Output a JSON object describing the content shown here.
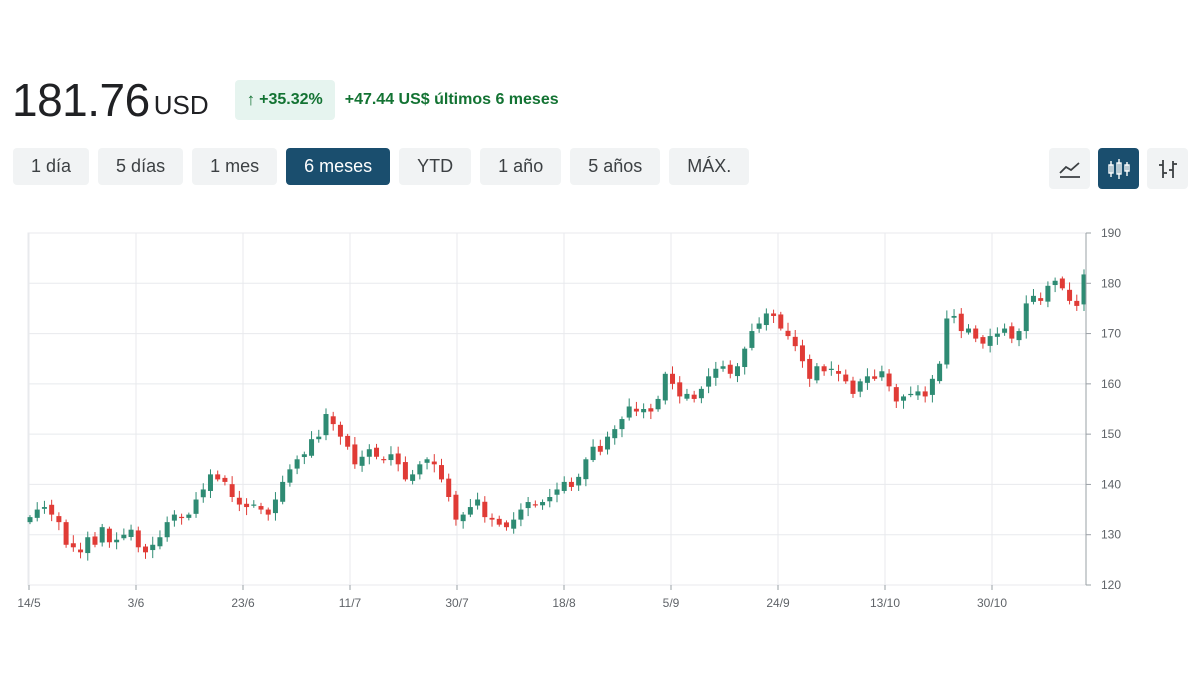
{
  "header": {
    "price": "181.76",
    "currency": "USD",
    "percent_change": "+35.32%",
    "change_text": "+47.44 US$ últimos 6 meses"
  },
  "ranges": [
    {
      "label": "1 día"
    },
    {
      "label": "5 días"
    },
    {
      "label": "1 mes"
    },
    {
      "label": "6 meses",
      "active": true
    },
    {
      "label": "YTD"
    },
    {
      "label": "1 año"
    },
    {
      "label": "5 años"
    },
    {
      "label": "MÁX."
    }
  ],
  "chart_types": [
    {
      "icon": "line-chart-icon"
    },
    {
      "icon": "candlestick-chart-icon",
      "active": true
    },
    {
      "icon": "ohlc-chart-icon"
    }
  ],
  "colors": {
    "up": "#2e8b73",
    "down": "#e03b36",
    "accent": "#1a4e6e",
    "positive_text": "#137333",
    "positive_bg": "#e6f4ef"
  },
  "chart_data": {
    "type": "candlestick",
    "ylim": [
      120,
      190
    ],
    "y_ticks": [
      190,
      180,
      170,
      160,
      150,
      140,
      130,
      120
    ],
    "x_tick_labels": [
      "14/5",
      "3/6",
      "23/6",
      "11/7",
      "30/7",
      "18/8",
      "5/9",
      "24/9",
      "13/10",
      "30/10"
    ],
    "grid": true,
    "y_axis_position": "right",
    "closes": [
      133.5,
      135.0,
      135.5,
      134.0,
      132.5,
      128.0,
      127.5,
      126.5,
      129.5,
      128.0,
      131.5,
      128.5,
      129.0,
      130.0,
      131.0,
      127.5,
      126.5,
      128.0,
      129.5,
      132.5,
      134.0,
      133.5,
      134.0,
      137.0,
      139.0,
      142.0,
      141.0,
      140.5,
      137.5,
      136.0,
      135.5,
      136.0,
      135.0,
      134.0,
      137.0,
      140.5,
      143.0,
      145.0,
      146.0,
      149.0,
      149.5,
      154.0,
      152.0,
      149.5,
      147.5,
      144.0,
      145.5,
      147.0,
      145.5,
      145.0,
      146.0,
      144.0,
      141.0,
      142.0,
      144.0,
      145.0,
      144.0,
      141.0,
      137.5,
      133.0,
      134.0,
      135.5,
      137.0,
      133.5,
      133.0,
      132.0,
      131.5,
      133.0,
      135.0,
      136.5,
      136.0,
      136.5,
      137.5,
      139.0,
      140.5,
      139.5,
      141.5,
      145.0,
      147.5,
      146.5,
      149.5,
      151.0,
      153.0,
      155.5,
      154.5,
      155.0,
      154.5,
      157.0,
      162.0,
      160.0,
      157.5,
      158.0,
      157.0,
      159.0,
      161.5,
      163.0,
      163.5,
      162.0,
      163.5,
      167.0,
      170.5,
      172.0,
      174.0,
      173.5,
      171.0,
      169.5,
      167.5,
      164.5,
      161.0,
      163.5,
      162.5,
      163.0,
      162.0,
      160.5,
      158.0,
      160.5,
      161.5,
      161.0,
      162.5,
      159.5,
      156.5,
      157.5,
      158.0,
      158.5,
      157.5,
      161.0,
      164.0,
      173.0,
      173.5,
      170.5,
      171.0,
      169.0,
      168.0,
      169.5,
      170.0,
      171.0,
      169.0,
      170.5,
      176.0,
      177.5,
      176.5,
      179.5,
      180.5,
      179.0,
      176.5,
      175.5,
      181.76
    ]
  }
}
